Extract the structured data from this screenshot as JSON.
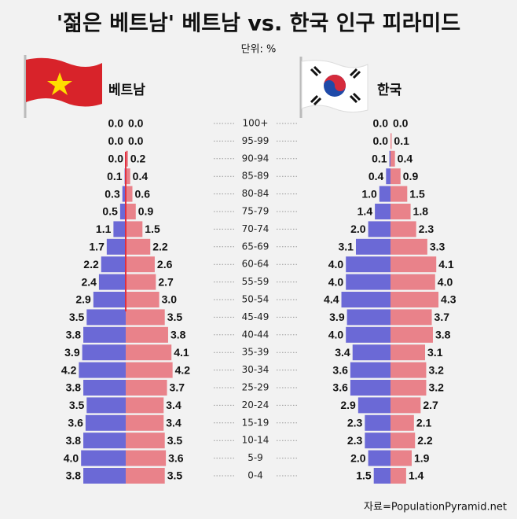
{
  "chart_data": {
    "type": "pyramid",
    "title": "'젊은 베트남' 베트남 vs. 한국 인구 피라미드",
    "subtitle": "단위: %",
    "source": "자료=PopulationPyramid.net",
    "categories": [
      "100+",
      "95-99",
      "90-94",
      "85-89",
      "80-84",
      "75-79",
      "70-74",
      "65-69",
      "60-64",
      "55-59",
      "50-54",
      "45-49",
      "40-44",
      "35-39",
      "30-34",
      "25-29",
      "20-24",
      "15-19",
      "10-14",
      "5-9",
      "0-4"
    ],
    "panels": [
      {
        "label": "베트남",
        "series": [
          {
            "color": "#6b69d6",
            "side": "left",
            "values": [
              0,
              0,
              0,
              0.1,
              0.3,
              0.5,
              1.1,
              1.7,
              2.2,
              2.4,
              2.9,
              3.5,
              3.8,
              3.9,
              4.2,
              3.8,
              3.5,
              3.6,
              3.8,
              4,
              3.8
            ],
            "value_labels": [
              "0.0",
              "0.0",
              "0.0",
              "0.1",
              "0.3",
              "0.5",
              "1.1",
              "1.7",
              "2.2",
              "2.4",
              "2.9",
              "3.5",
              "3.8",
              "3.9",
              "4.2",
              "3.8",
              "3.5",
              "3.6",
              "3.8",
              "4.0",
              "3.8"
            ]
          },
          {
            "color": "#e9828a",
            "side": "right",
            "values": [
              0,
              0,
              0.2,
              0.4,
              0.6,
              0.9,
              1.5,
              2.2,
              2.6,
              2.7,
              3,
              3.5,
              3.8,
              4.1,
              4.2,
              3.7,
              3.4,
              3.4,
              3.5,
              3.6,
              3.5
            ],
            "value_labels": [
              "0.0",
              "0.0",
              "0.2",
              "0.4",
              "0.6",
              "0.9",
              "1.5",
              "2.2",
              "2.6",
              "2.7",
              "3.0",
              "3.5",
              "3.8",
              "4.1",
              "4.2",
              "3.7",
              "3.4",
              "3.4",
              "3.5",
              "3.6",
              "3.5"
            ]
          }
        ]
      },
      {
        "label": "한국",
        "series": [
          {
            "color": "#6b69d6",
            "side": "left",
            "values": [
              0,
              0,
              0.1,
              0.4,
              1,
              1.4,
              2,
              3.1,
              4,
              4,
              4.4,
              3.9,
              4,
              3.4,
              3.6,
              3.6,
              2.9,
              2.3,
              2.3,
              2,
              1.5
            ],
            "value_labels": [
              "0.0",
              "0.0",
              "0.1",
              "0.4",
              "1.0",
              "1.4",
              "2.0",
              "3.1",
              "4.0",
              "4.0",
              "4.4",
              "3.9",
              "4.0",
              "3.4",
              "3.6",
              "3.6",
              "2.9",
              "2.3",
              "2.3",
              "2.0",
              "1.5"
            ]
          },
          {
            "color": "#e9828a",
            "side": "right",
            "values": [
              0,
              0.1,
              0.4,
              0.9,
              1.5,
              1.8,
              2.3,
              3.3,
              4.1,
              4,
              4.3,
              3.7,
              3.8,
              3.1,
              3.2,
              3.2,
              2.7,
              2.1,
              2.2,
              1.9,
              1.4
            ],
            "value_labels": [
              "0.0",
              "0.1",
              "0.4",
              "0.9",
              "1.5",
              "1.8",
              "2.3",
              "3.3",
              "4.1",
              "4.0",
              "4.3",
              "3.7",
              "3.8",
              "3.1",
              "3.2",
              "3.2",
              "2.7",
              "2.1",
              "2.2",
              "1.9",
              "1.4"
            ]
          }
        ]
      }
    ]
  }
}
